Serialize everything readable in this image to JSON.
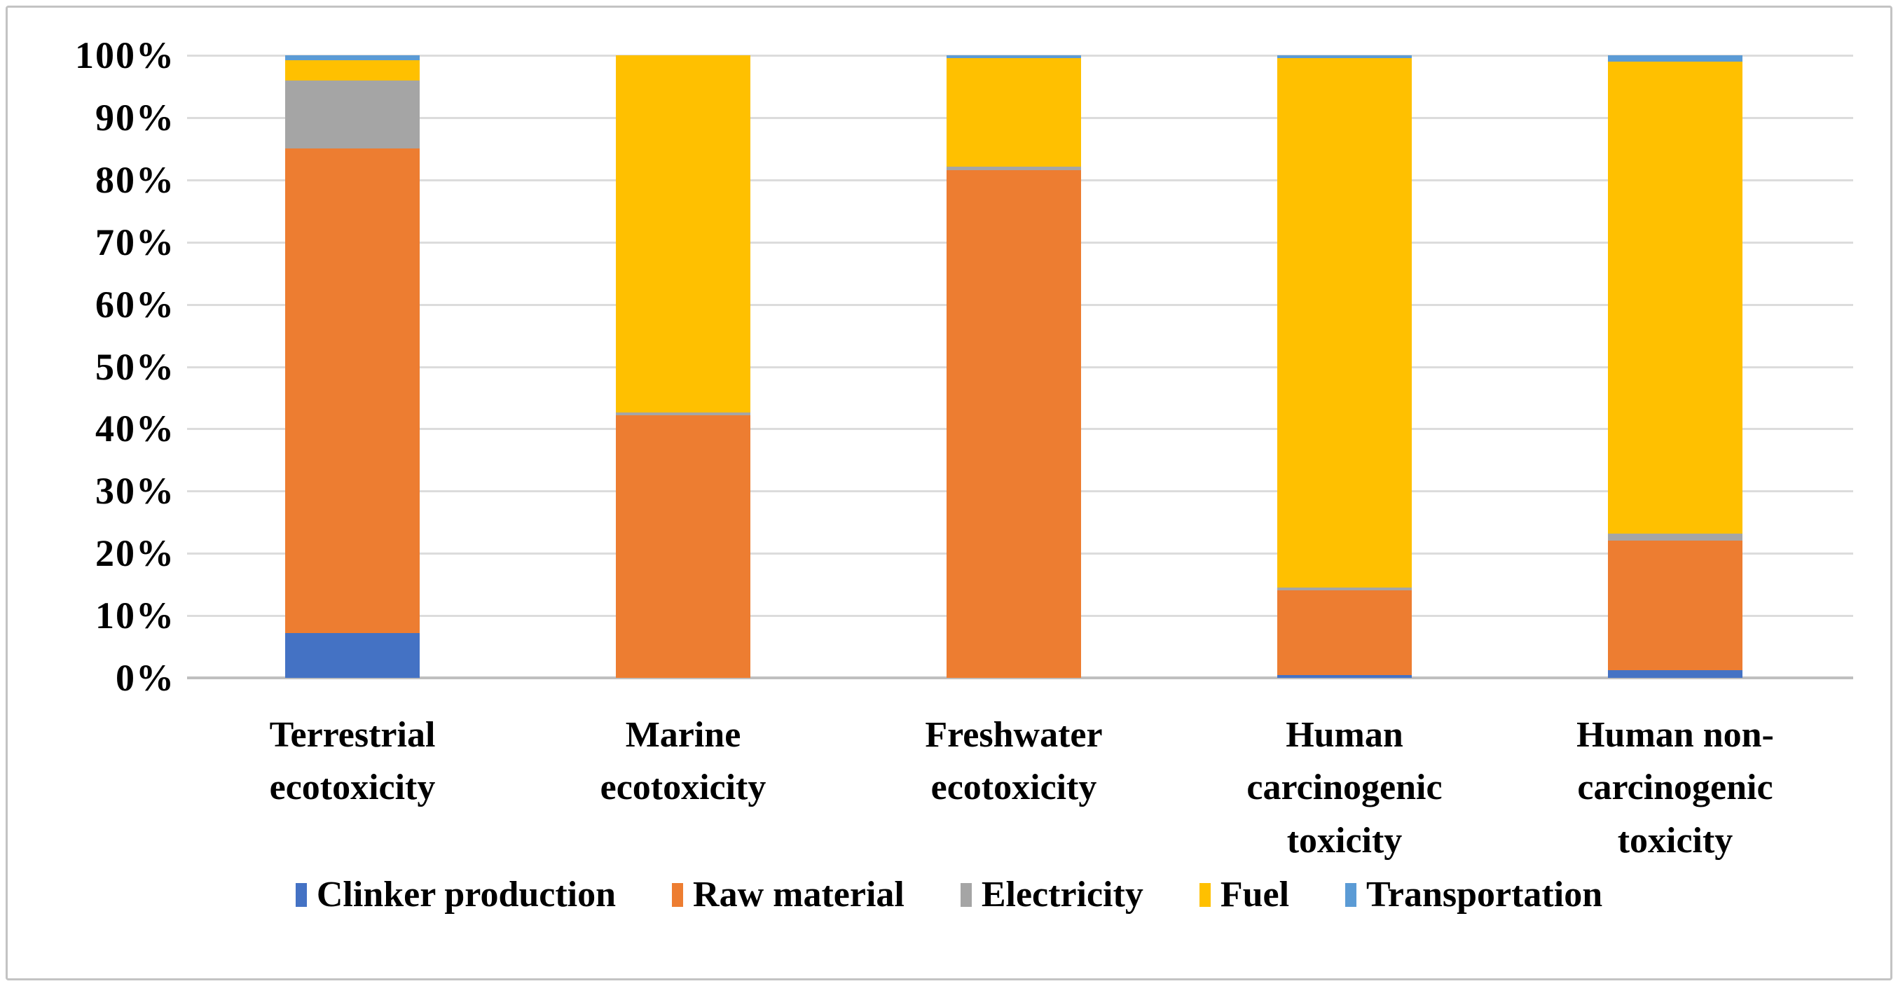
{
  "figure": {
    "background": "#ffffff",
    "border_color": "#c3c3c3",
    "gridline_color": "#dcdcdc",
    "axis_line_color": "#bfbfbf"
  },
  "chart_data": {
    "type": "bar",
    "variant": "100%-stacked-column",
    "title": "",
    "xlabel": "",
    "ylabel": "",
    "grid": true,
    "legend_position": "bottom",
    "y_axis": {
      "min": 0,
      "max": 100,
      "tick_step": 10,
      "tick_labels": [
        "0%",
        "10%",
        "20%",
        "30%",
        "40%",
        "50%",
        "60%",
        "70%",
        "80%",
        "90%",
        "100%"
      ]
    },
    "categories": [
      "Terrestrial ecotoxicity",
      "Marine ecotoxicity",
      "Freshwater ecotoxicity",
      "Human carcinogenic toxicity",
      "Human non-carcinogenic toxicity"
    ],
    "category_label_lines": [
      [
        "Terrestrial",
        "ecotoxicity"
      ],
      [
        "Marine",
        "ecotoxicity"
      ],
      [
        "Freshwater",
        "ecotoxicity"
      ],
      [
        "Human",
        "carcinogenic",
        "toxicity"
      ],
      [
        "Human non-",
        "carcinogenic",
        "toxicity"
      ]
    ],
    "series": [
      {
        "name": "Clinker production",
        "color": "#4472C4",
        "values": [
          7.2,
          0,
          0,
          0.5,
          1.2
        ]
      },
      {
        "name": "Raw material",
        "color": "#ED7D31",
        "values": [
          77.8,
          42.2,
          81.6,
          13.6,
          20.9
        ]
      },
      {
        "name": "Electricity",
        "color": "#A5A5A5",
        "values": [
          11.0,
          0.4,
          0.5,
          0.4,
          1.1
        ]
      },
      {
        "name": "Fuel",
        "color": "#FFC000",
        "values": [
          3.2,
          57.4,
          17.4,
          85.0,
          75.8
        ]
      },
      {
        "name": "Transportation",
        "color": "#5B9BD5",
        "values": [
          0.8,
          0,
          0.5,
          0.5,
          1.0
        ]
      }
    ]
  }
}
